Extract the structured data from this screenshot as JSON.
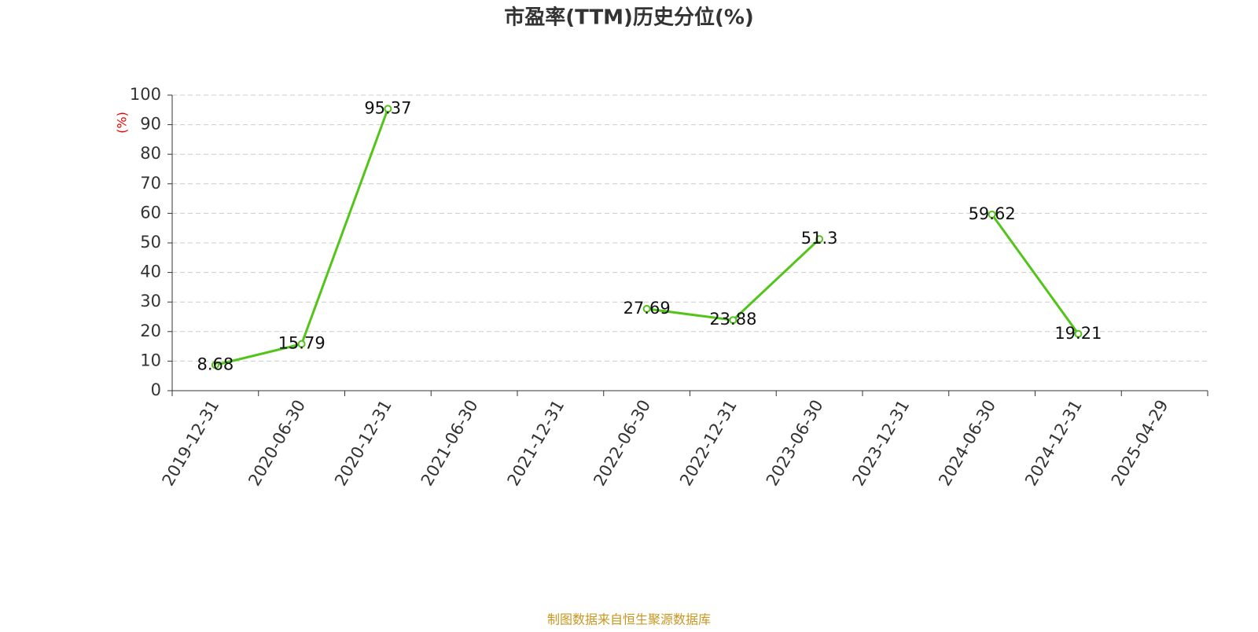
{
  "chart_data": {
    "type": "line",
    "title": "市盈率(TTM)历史分位(%)",
    "y_axis_label": "(%)",
    "source": "制图数据来自恒生聚源数据库",
    "categories": [
      "2019-12-31",
      "2020-06-30",
      "2020-12-31",
      "2021-06-30",
      "2021-12-31",
      "2022-06-30",
      "2022-12-31",
      "2023-06-30",
      "2023-12-31",
      "2024-06-30",
      "2024-12-31",
      "2025-04-29"
    ],
    "series": [
      {
        "name": "市盈率(TTM)历史分位",
        "color": "#52c41a",
        "values": [
          8.68,
          15.79,
          95.37,
          null,
          null,
          27.69,
          23.88,
          51.3,
          null,
          59.62,
          19.21,
          null
        ]
      }
    ],
    "ylim": [
      0,
      100
    ],
    "yticks": [
      0,
      10,
      20,
      30,
      40,
      50,
      60,
      70,
      80,
      90,
      100
    ],
    "grid": true
  }
}
